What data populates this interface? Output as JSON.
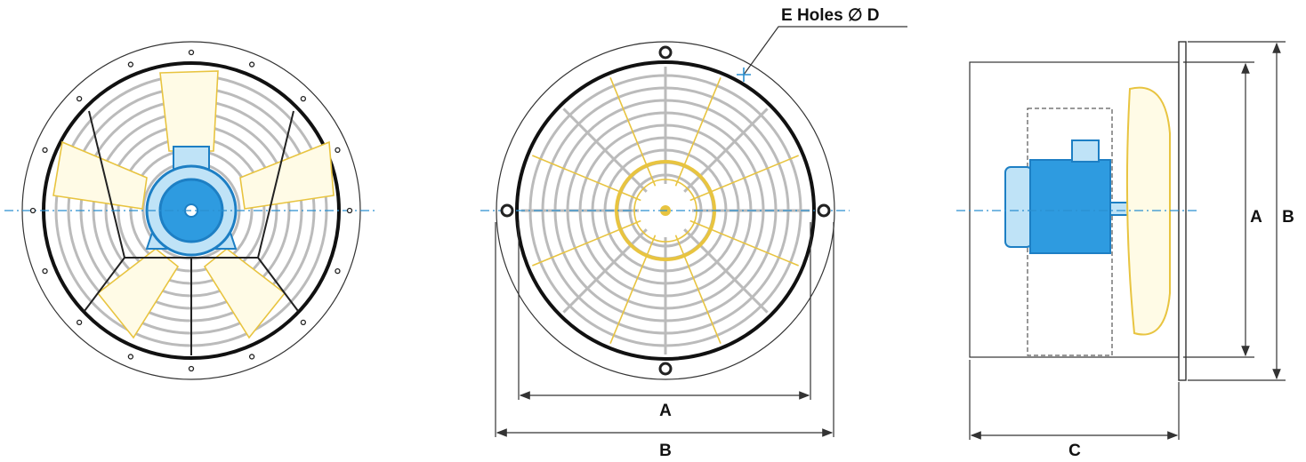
{
  "middle_view": {
    "callout": "E Holes ∅ D",
    "width_a": "A",
    "width_b": "B"
  },
  "side_view": {
    "height_a": "A",
    "height_b": "B",
    "depth_c": "C"
  }
}
